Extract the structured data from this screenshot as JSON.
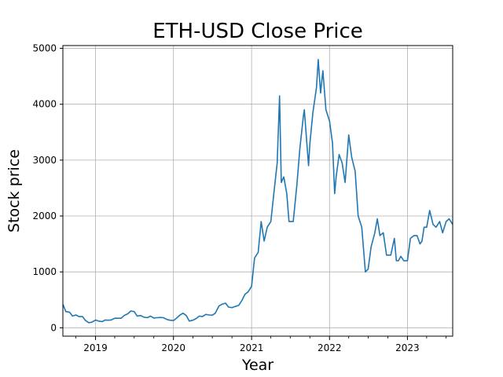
{
  "chart_data": {
    "type": "line",
    "title": "ETH-USD Close Price",
    "xlabel": "Year",
    "ylabel": "Stock price",
    "xlim": [
      "2018-08-01",
      "2023-08-01"
    ],
    "ylim": [
      -150,
      5050
    ],
    "x_ticks": [
      "2019",
      "2020",
      "2021",
      "2022",
      "2023"
    ],
    "y_ticks": [
      0,
      1000,
      2000,
      3000,
      4000,
      5000
    ],
    "grid": true,
    "legend": "none",
    "line_color": "#1f77b4",
    "series": [
      {
        "x": [
          "2018-08-01",
          "2018-08-15",
          "2018-09-01",
          "2018-09-15",
          "2018-10-01",
          "2018-10-15",
          "2018-11-01",
          "2018-11-15",
          "2018-12-01",
          "2018-12-15",
          "2019-01-01",
          "2019-01-15",
          "2019-02-01",
          "2019-02-15",
          "2019-03-01",
          "2019-03-15",
          "2019-04-01",
          "2019-04-15",
          "2019-05-01",
          "2019-05-15",
          "2019-06-01",
          "2019-06-15",
          "2019-07-01",
          "2019-07-15",
          "2019-08-01",
          "2019-08-15",
          "2019-09-01",
          "2019-09-15",
          "2019-10-01",
          "2019-10-15",
          "2019-11-01",
          "2019-11-15",
          "2019-12-01",
          "2019-12-15",
          "2020-01-01",
          "2020-01-15",
          "2020-02-01",
          "2020-02-15",
          "2020-03-01",
          "2020-03-15",
          "2020-04-01",
          "2020-04-15",
          "2020-05-01",
          "2020-05-15",
          "2020-06-01",
          "2020-06-15",
          "2020-07-01",
          "2020-07-15",
          "2020-08-01",
          "2020-08-15",
          "2020-09-01",
          "2020-09-15",
          "2020-10-01",
          "2020-10-15",
          "2020-11-01",
          "2020-11-15",
          "2020-12-01",
          "2020-12-15",
          "2021-01-01",
          "2021-01-15",
          "2021-02-01",
          "2021-02-15",
          "2021-03-01",
          "2021-03-15",
          "2021-04-01",
          "2021-04-15",
          "2021-05-01",
          "2021-05-12",
          "2021-05-20",
          "2021-06-01",
          "2021-06-15",
          "2021-06-25",
          "2021-07-15",
          "2021-08-01",
          "2021-08-15",
          "2021-09-01",
          "2021-09-05",
          "2021-09-15",
          "2021-09-25",
          "2021-10-01",
          "2021-10-15",
          "2021-11-01",
          "2021-11-09",
          "2021-11-20",
          "2021-12-01",
          "2021-12-15",
          "2022-01-01",
          "2022-01-15",
          "2022-01-25",
          "2022-02-01",
          "2022-02-15",
          "2022-03-01",
          "2022-03-15",
          "2022-04-01",
          "2022-04-15",
          "2022-05-01",
          "2022-05-15",
          "2022-06-01",
          "2022-06-18",
          "2022-07-01",
          "2022-07-15",
          "2022-08-01",
          "2022-08-13",
          "2022-08-25",
          "2022-09-10",
          "2022-09-25",
          "2022-10-15",
          "2022-11-01",
          "2022-11-10",
          "2022-11-20",
          "2022-12-01",
          "2022-12-15",
          "2023-01-01",
          "2023-01-15",
          "2023-02-01",
          "2023-02-15",
          "2023-03-01",
          "2023-03-10",
          "2023-03-20",
          "2023-04-01",
          "2023-04-15",
          "2023-05-01",
          "2023-05-15",
          "2023-06-01",
          "2023-06-15",
          "2023-07-01",
          "2023-07-15",
          "2023-08-01"
        ],
        "y": [
          420,
          290,
          280,
          210,
          230,
          200,
          200,
          130,
          90,
          100,
          140,
          120,
          110,
          140,
          135,
          140,
          170,
          170,
          170,
          220,
          250,
          300,
          290,
          210,
          220,
          190,
          180,
          210,
          175,
          180,
          185,
          180,
          150,
          135,
          130,
          170,
          230,
          260,
          220,
          120,
          135,
          160,
          210,
          200,
          240,
          230,
          225,
          260,
          390,
          420,
          440,
          370,
          360,
          380,
          400,
          480,
          600,
          640,
          740,
          1250,
          1350,
          1900,
          1550,
          1800,
          1900,
          2400,
          2950,
          4150,
          2600,
          2700,
          2400,
          1900,
          1900,
          2550,
          3200,
          3800,
          3900,
          3400,
          2900,
          3300,
          3850,
          4300,
          4800,
          4200,
          4600,
          3900,
          3700,
          3300,
          2400,
          2700,
          3100,
          2950,
          2600,
          3450,
          3050,
          2800,
          2000,
          1800,
          1000,
          1050,
          1450,
          1700,
          1950,
          1650,
          1700,
          1300,
          1300,
          1600,
          1200,
          1200,
          1280,
          1200,
          1200,
          1600,
          1650,
          1650,
          1500,
          1550,
          1800,
          1800,
          2100,
          1850,
          1800,
          1900,
          1700,
          1900,
          1950,
          1850
        ]
      }
    ]
  }
}
